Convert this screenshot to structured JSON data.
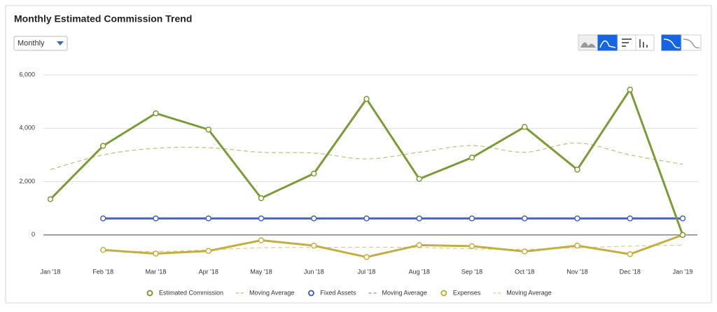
{
  "ui": {
    "dropdown": "Monthly"
  },
  "chart_data": {
    "type": "line",
    "title": "Monthly Estimated Commission Trend",
    "categories": [
      "Jan '18",
      "Feb '18",
      "Mar '18",
      "Apr '18",
      "May '18",
      "Jun '18",
      "Jul '18",
      "Aug '18",
      "Sep '18",
      "Oct '18",
      "Nov '18",
      "Dec '18",
      "Jan '19"
    ],
    "ylim": [
      -1000,
      6500
    ],
    "yticks": [
      0,
      {
        "value": 2000,
        "label": "2,000"
      },
      {
        "value": 4000,
        "label": "4,000"
      },
      {
        "value": 6000,
        "label": "6,000"
      }
    ],
    "grid": true,
    "series": [
      {
        "name": "Estimated Commission",
        "color": "#7b9a3a",
        "dashed": false,
        "markers": true,
        "values": [
          1340,
          3340,
          4560,
          3950,
          1380,
          2300,
          5100,
          2100,
          2900,
          4050,
          2450,
          5450,
          0
        ]
      },
      {
        "name": "Moving Average",
        "color": "#b7c27c",
        "dashed": true,
        "markers": false,
        "values": [
          2450,
          3000,
          3250,
          3270,
          3100,
          3070,
          2850,
          3100,
          3350,
          3100,
          3450,
          3000,
          2650
        ]
      },
      {
        "name": "Fixed Assets",
        "color": "#4a62b5",
        "dashed": false,
        "markers": true,
        "values": [
          null,
          620,
          620,
          620,
          620,
          620,
          620,
          620,
          620,
          620,
          620,
          620,
          620
        ]
      },
      {
        "name": "Moving Average",
        "color": "#7d8fcf",
        "dashed": true,
        "markers": false,
        "values": [
          null,
          620,
          620,
          620,
          620,
          620,
          620,
          620,
          620,
          620,
          620,
          620,
          620
        ]
      },
      {
        "name": "Expenses",
        "color": "#c3ae45",
        "dashed": false,
        "markers": true,
        "values": [
          null,
          -560,
          -700,
          -600,
          -200,
          -400,
          -830,
          -380,
          -420,
          -620,
          -400,
          -720,
          0
        ]
      },
      {
        "name": "Moving Average",
        "color": "#d6cd8e",
        "dashed": true,
        "markers": false,
        "values": [
          null,
          -600,
          -620,
          -560,
          -480,
          -470,
          -460,
          -470,
          -520,
          -540,
          -480,
          -420,
          -380
        ]
      }
    ]
  }
}
